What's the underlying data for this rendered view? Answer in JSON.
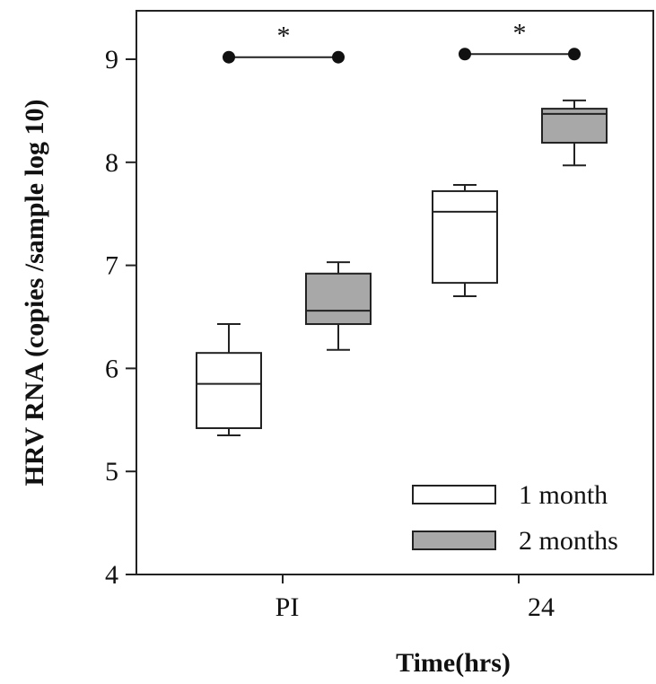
{
  "chart_data": {
    "type": "box",
    "title": "",
    "xlabel": "Time(hrs)",
    "ylabel": "HRV RNA (copies /sample log 10)",
    "ylim": [
      4,
      9.5
    ],
    "yticks": [
      "4",
      "5",
      "6",
      "7",
      "8",
      "9"
    ],
    "categories": [
      "PI",
      "24"
    ],
    "series": [
      {
        "name": "1 month",
        "color": "#ffffff",
        "boxes": [
          {
            "category": "PI",
            "whisker_low": 5.35,
            "q1": 5.42,
            "median": 5.85,
            "q3": 6.15,
            "whisker_high": 6.43
          },
          {
            "category": "24",
            "whisker_low": 6.7,
            "q1": 6.83,
            "median": 7.52,
            "q3": 7.72,
            "whisker_high": 7.78
          }
        ]
      },
      {
        "name": "2 months",
        "color": "#a8a8a8",
        "boxes": [
          {
            "category": "PI",
            "whisker_low": 6.18,
            "q1": 6.43,
            "median": 6.56,
            "q3": 6.92,
            "whisker_high": 7.03
          },
          {
            "category": "24",
            "whisker_low": 7.97,
            "q1": 8.19,
            "median": 8.47,
            "q3": 8.52,
            "whisker_high": 8.6
          }
        ]
      }
    ],
    "significance": [
      {
        "category": "PI",
        "label": "*",
        "y": 9.02
      },
      {
        "category": "24",
        "label": "*",
        "y": 9.05
      }
    ],
    "legend_position": "bottom-right",
    "grid": false
  }
}
